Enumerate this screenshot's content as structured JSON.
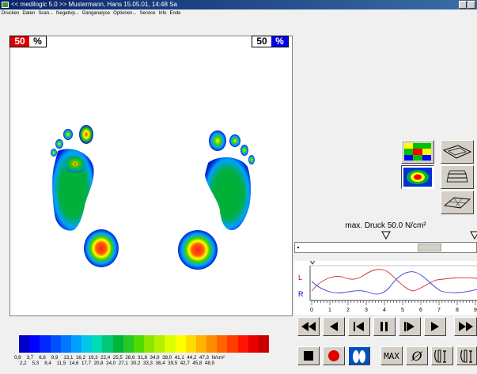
{
  "window": {
    "title": "<< medilogic 5.0 >>   Mustermann, Hans 15.05.01, 14:48 Sa"
  },
  "menu": [
    "Drucken",
    "Daten",
    "Scan...",
    "Negativp...",
    "Ganganalyse",
    "Optionen...",
    "Service",
    "Info",
    "Ende"
  ],
  "pressure_view": {
    "left_percent": "50",
    "right_percent": "50",
    "percent_symbol": "%"
  },
  "color_scale": {
    "colors": [
      "#0000c8",
      "#0000ff",
      "#0028ff",
      "#0050ff",
      "#0078ff",
      "#00a0ff",
      "#00c8e6",
      "#00dcb4",
      "#00c878",
      "#00b43c",
      "#28c828",
      "#50dc00",
      "#8ce600",
      "#b4f000",
      "#dcff00",
      "#ffff00",
      "#ffdc00",
      "#ffb400",
      "#ff8c00",
      "#ff6400",
      "#ff3c00",
      "#ff1400",
      "#e60000",
      "#c80000"
    ],
    "labels_row1": [
      "0,8",
      "3,7",
      "6,8",
      "9,9",
      "13,1",
      "16,2",
      "19,3",
      "22,4",
      "25,5",
      "28,6",
      "31,8",
      "34,9",
      "38,0",
      "41,1",
      "44,2",
      "47,3",
      "N/cm²"
    ],
    "labels_row2": [
      "2,2",
      "5,3",
      "8,4",
      "11,5",
      "14,6",
      "17,7",
      "20,8",
      "24,0",
      "27,1",
      "30,2",
      "33,3",
      "36,4",
      "39,5",
      "42,7",
      "45,8",
      "48,9"
    ]
  },
  "right_panel": {
    "max_pressure_label": "max. Druck 50.0 N/cm²",
    "graph_L": "L",
    "graph_R": "R",
    "graph_ticks": [
      "0",
      "1",
      "2",
      "3",
      "4",
      "5",
      "6",
      "7",
      "8",
      "9"
    ],
    "max_button": "MAX",
    "phi_button": "Ø"
  }
}
